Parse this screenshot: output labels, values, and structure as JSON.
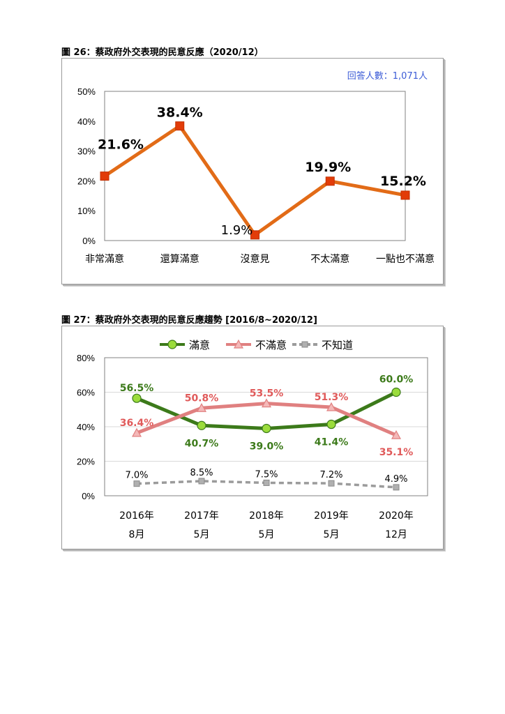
{
  "chart26": {
    "caption": "圖 26：蔡政府外交表現的民意反應（2020/12）",
    "respondents": "回答人數：1,071人",
    "colors": {
      "line": "#E26B17",
      "marker": "#E23C09",
      "note": "#3B5BD6"
    },
    "chart_data": {
      "type": "line",
      "categories": [
        "非常滿意",
        "還算滿意",
        "沒意見",
        "不太滿意",
        "一點也不滿意"
      ],
      "values": [
        21.6,
        38.4,
        1.9,
        19.9,
        15.2
      ],
      "data_labels": [
        "21.6%",
        "38.4%",
        "1.9%",
        "19.9%",
        "15.2%"
      ],
      "ylim": [
        0,
        50
      ],
      "yticks": [
        "0%",
        "10%",
        "20%",
        "30%",
        "40%",
        "50%"
      ],
      "grid": false,
      "legend": "none"
    }
  },
  "chart27": {
    "caption": "圖 27：蔡政府外交表現的民意反應趨勢 [2016/8~2020/12]",
    "colors": {
      "satisfied": "#3C7A1A",
      "satisfied_marker": "#9BDC3C",
      "dissatisfied": "#E08080",
      "dissatisfied_marker": "#F4B8B8",
      "unknown": "#9B9B9B"
    },
    "chart_data": {
      "type": "line",
      "categories": [
        "2016年 8月",
        "2017年 5月",
        "2018年 5月",
        "2019年 5月",
        "2020年 12月"
      ],
      "category_lines": [
        [
          "2016年",
          "8月"
        ],
        [
          "2017年",
          "5月"
        ],
        [
          "2018年",
          "5月"
        ],
        [
          "2019年",
          "5月"
        ],
        [
          "2020年",
          "12月"
        ]
      ],
      "series": [
        {
          "name": "滿意",
          "values": [
            56.5,
            40.7,
            39.0,
            41.4,
            60.0
          ],
          "labels": [
            "56.5%",
            "40.7%",
            "39.0%",
            "41.4%",
            "60.0%"
          ]
        },
        {
          "name": "不滿意",
          "values": [
            36.4,
            50.8,
            53.5,
            51.3,
            35.1
          ],
          "labels": [
            "36.4%",
            "50.8%",
            "53.5%",
            "51.3%",
            "35.1%"
          ]
        },
        {
          "name": "不知道",
          "values": [
            7.0,
            8.5,
            7.5,
            7.2,
            4.9
          ],
          "labels": [
            "7.0%",
            "8.5%",
            "7.5%",
            "7.2%",
            "4.9%"
          ]
        }
      ],
      "ylim": [
        0,
        80
      ],
      "yticks": [
        "0%",
        "20%",
        "40%",
        "60%",
        "80%"
      ],
      "grid": true,
      "legend": "top-center"
    }
  }
}
